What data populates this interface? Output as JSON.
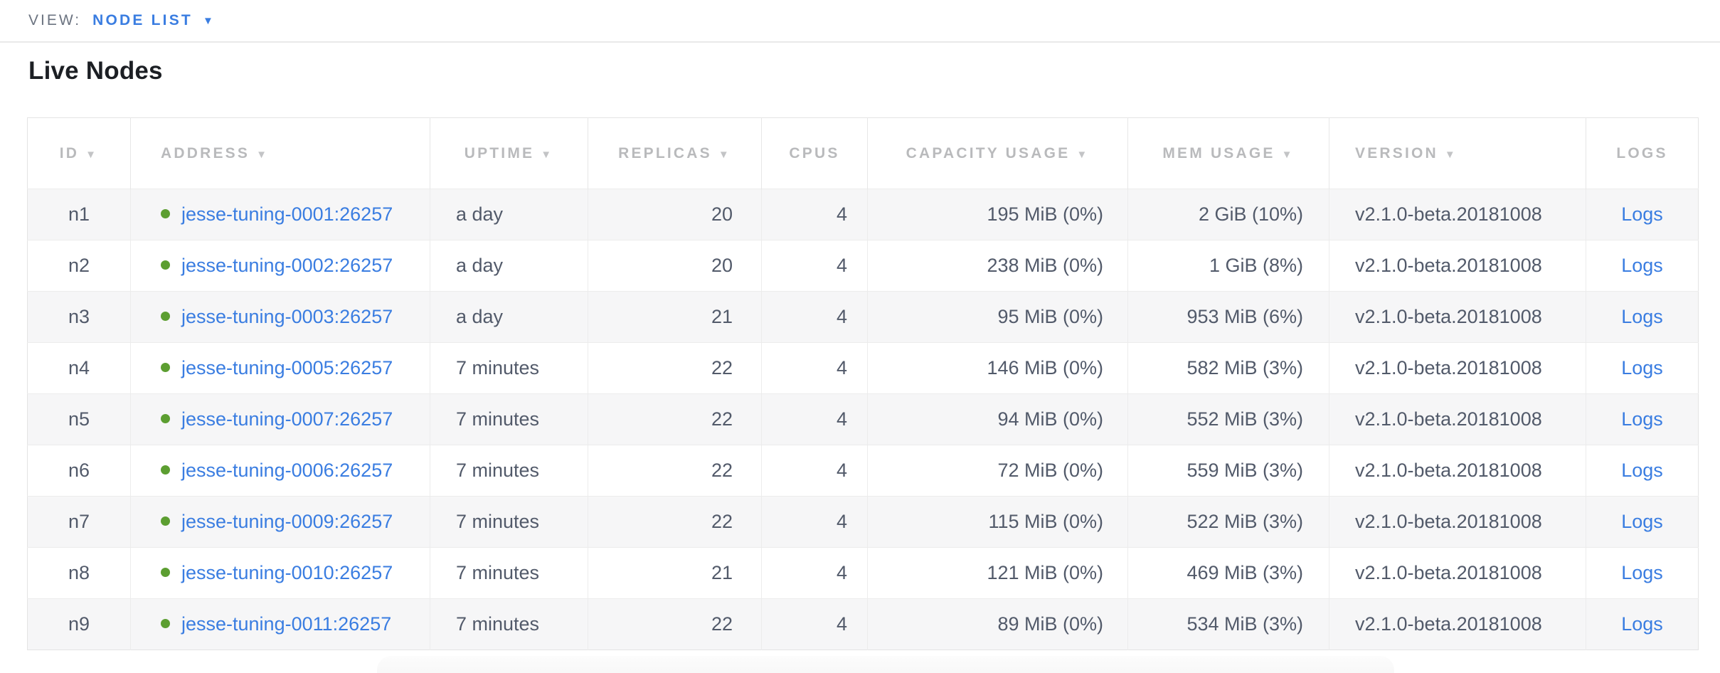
{
  "view_bar": {
    "label": "VIEW:",
    "selected": "NODE LIST",
    "dropdown_icon": "▼"
  },
  "page_title": "Live Nodes",
  "table": {
    "sort_indicator": "▼",
    "columns": [
      {
        "key": "id",
        "label": "ID",
        "sortable": true
      },
      {
        "key": "address",
        "label": "ADDRESS",
        "sortable": true
      },
      {
        "key": "uptime",
        "label": "UPTIME",
        "sortable": true
      },
      {
        "key": "replicas",
        "label": "REPLICAS",
        "sortable": true
      },
      {
        "key": "cpus",
        "label": "CPUS",
        "sortable": false
      },
      {
        "key": "capacity",
        "label": "CAPACITY USAGE",
        "sortable": true
      },
      {
        "key": "mem",
        "label": "MEM USAGE",
        "sortable": true
      },
      {
        "key": "version",
        "label": "VERSION",
        "sortable": true
      },
      {
        "key": "logs",
        "label": "LOGS",
        "sortable": false
      }
    ],
    "rows": [
      {
        "id": "n1",
        "status": "healthy",
        "address": "jesse-tuning-0001:26257",
        "uptime": "a day",
        "replicas": "20",
        "cpus": "4",
        "capacity": "195 MiB (0%)",
        "mem": "2 GiB (10%)",
        "version": "v2.1.0-beta.20181008",
        "logs": "Logs"
      },
      {
        "id": "n2",
        "status": "healthy",
        "address": "jesse-tuning-0002:26257",
        "uptime": "a day",
        "replicas": "20",
        "cpus": "4",
        "capacity": "238 MiB (0%)",
        "mem": "1 GiB (8%)",
        "version": "v2.1.0-beta.20181008",
        "logs": "Logs"
      },
      {
        "id": "n3",
        "status": "healthy",
        "address": "jesse-tuning-0003:26257",
        "uptime": "a day",
        "replicas": "21",
        "cpus": "4",
        "capacity": "95 MiB (0%)",
        "mem": "953 MiB (6%)",
        "version": "v2.1.0-beta.20181008",
        "logs": "Logs"
      },
      {
        "id": "n4",
        "status": "healthy",
        "address": "jesse-tuning-0005:26257",
        "uptime": "7 minutes",
        "replicas": "22",
        "cpus": "4",
        "capacity": "146 MiB (0%)",
        "mem": "582 MiB (3%)",
        "version": "v2.1.0-beta.20181008",
        "logs": "Logs"
      },
      {
        "id": "n5",
        "status": "healthy",
        "address": "jesse-tuning-0007:26257",
        "uptime": "7 minutes",
        "replicas": "22",
        "cpus": "4",
        "capacity": "94 MiB (0%)",
        "mem": "552 MiB (3%)",
        "version": "v2.1.0-beta.20181008",
        "logs": "Logs"
      },
      {
        "id": "n6",
        "status": "healthy",
        "address": "jesse-tuning-0006:26257",
        "uptime": "7 minutes",
        "replicas": "22",
        "cpus": "4",
        "capacity": "72 MiB (0%)",
        "mem": "559 MiB (3%)",
        "version": "v2.1.0-beta.20181008",
        "logs": "Logs"
      },
      {
        "id": "n7",
        "status": "healthy",
        "address": "jesse-tuning-0009:26257",
        "uptime": "7 minutes",
        "replicas": "22",
        "cpus": "4",
        "capacity": "115 MiB (0%)",
        "mem": "522 MiB (3%)",
        "version": "v2.1.0-beta.20181008",
        "logs": "Logs"
      },
      {
        "id": "n8",
        "status": "healthy",
        "address": "jesse-tuning-0010:26257",
        "uptime": "7 minutes",
        "replicas": "21",
        "cpus": "4",
        "capacity": "121 MiB (0%)",
        "mem": "469 MiB (3%)",
        "version": "v2.1.0-beta.20181008",
        "logs": "Logs"
      },
      {
        "id": "n9",
        "status": "healthy",
        "address": "jesse-tuning-0011:26257",
        "uptime": "7 minutes",
        "replicas": "22",
        "cpus": "4",
        "capacity": "89 MiB (0%)",
        "mem": "534 MiB (3%)",
        "version": "v2.1.0-beta.20181008",
        "logs": "Logs"
      }
    ]
  },
  "colors": {
    "link_blue": "#3a7de1",
    "healthy_dot_green": "#5c9e31",
    "header_gray": "#b9babc",
    "row_stripe": "#f6f6f7"
  }
}
